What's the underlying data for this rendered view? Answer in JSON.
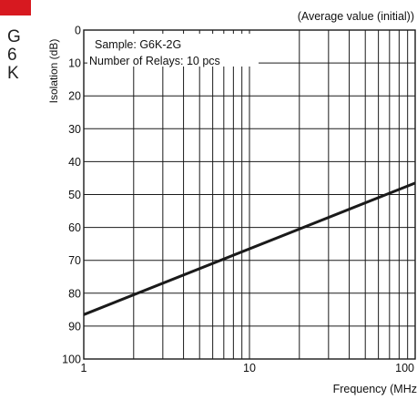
{
  "side_tab": {
    "letters": [
      "G",
      "6",
      "K"
    ],
    "accent": "#d71920"
  },
  "chart_data": {
    "type": "line",
    "note": "(Average value (initial))",
    "ylabel": "Isolation (dB)",
    "xlabel": "Frequency (MHz",
    "xscale": "log",
    "xlim": [
      1,
      100
    ],
    "ylim": [
      0,
      100
    ],
    "y_inverted": true,
    "grid": true,
    "xticks": [
      1,
      10,
      100
    ],
    "xtick_labels": [
      "1",
      "10",
      "100"
    ],
    "yticks": [
      0,
      10,
      20,
      30,
      40,
      50,
      60,
      70,
      80,
      90,
      100
    ],
    "ytick_labels": [
      "0",
      "10",
      "20",
      "30",
      "40",
      "50",
      "60",
      "70",
      "80",
      "90",
      "100"
    ],
    "annotations": [
      "Sample: G6K-2G",
      "Number of Relays: 10 pcs"
    ],
    "series": [
      {
        "x": [
          1,
          100
        ],
        "y": [
          86.5,
          46.5
        ],
        "color": "#1a1a1a"
      }
    ]
  }
}
